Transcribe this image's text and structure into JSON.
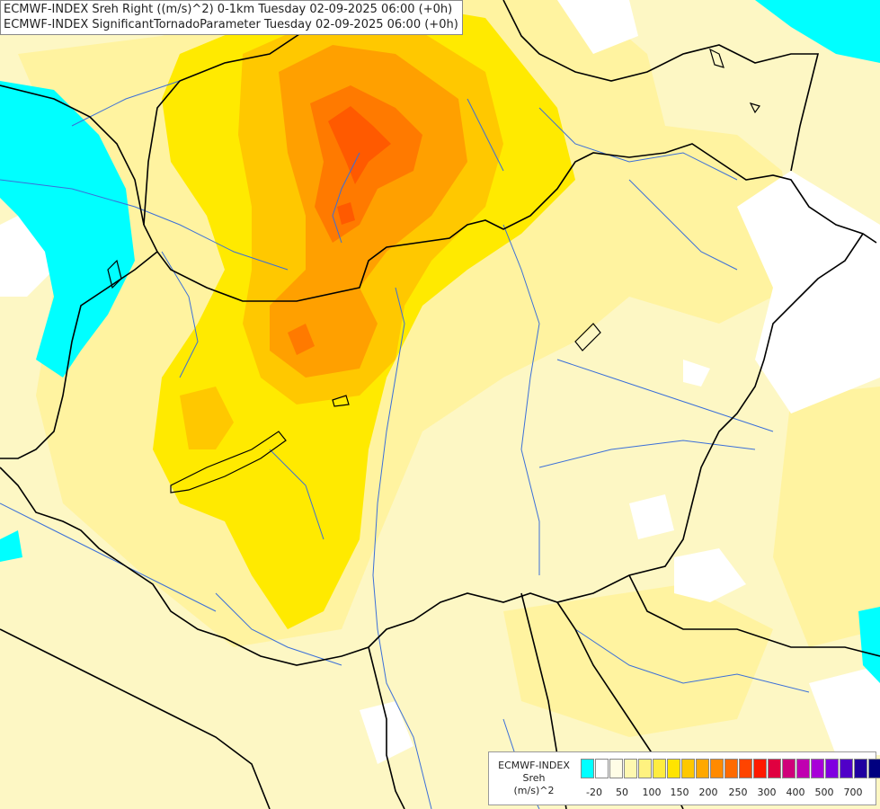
{
  "header": {
    "line1": "ECMWF-INDEX Sreh Right ((m/s)^2) 0-1km Tuesday 02-09-2025 06:00 (+0h)",
    "line2": "ECMWF-INDEX SignificantTornadoParameter Tuesday 02-09-2025 06:00 (+0h)"
  },
  "legend": {
    "title_line1": "ECMWF-INDEX",
    "title_line2": "Sreh",
    "title_line3": "(m/s)^2",
    "swatches": [
      "#00ffff",
      "#ffffff",
      "#fffde6",
      "#fff8b0",
      "#fff280",
      "#ffec40",
      "#ffe400",
      "#ffc800",
      "#ffa800",
      "#ff8a00",
      "#ff6a00",
      "#ff4400",
      "#ff1a00",
      "#e00040",
      "#d0007a",
      "#c000b0",
      "#a800d8",
      "#8000e0",
      "#5000c8",
      "#2000a0",
      "#000080"
    ],
    "ticks": [
      "-20",
      "50",
      "100",
      "150",
      "200",
      "250",
      "300",
      "400",
      "500",
      "700"
    ]
  },
  "colors": {
    "cyan": "#00ffff",
    "white": "#ffffff",
    "pale_yellow": "#fdf7c4",
    "light_yellow": "#fff3a0",
    "yellow": "#ffea00",
    "gold": "#ffc800",
    "orange": "#ffa000",
    "dark_orange": "#ff7a00",
    "red_orange": "#ff5a00",
    "border": "#000000",
    "river": "#3b6fd8"
  }
}
